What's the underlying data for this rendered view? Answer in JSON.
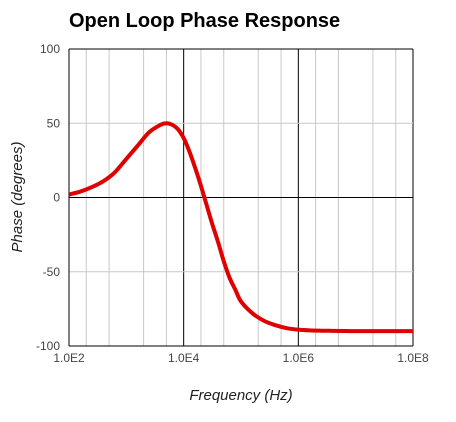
{
  "chart_data": {
    "type": "line",
    "title": "Open Loop Phase Response",
    "xlabel": "Frequency (Hz)",
    "ylabel": "Phase (degrees)",
    "x_scale": "log",
    "xlim": [
      100,
      100000000
    ],
    "ylim": [
      -100,
      100
    ],
    "x_ticks": [
      {
        "value": 100,
        "label": "1.0E2"
      },
      {
        "value": 10000,
        "label": "1.0E4"
      },
      {
        "value": 1000000,
        "label": "1.0E6"
      },
      {
        "value": 100000000,
        "label": "1.0E8"
      }
    ],
    "y_ticks": [
      {
        "value": 100,
        "label": "100"
      },
      {
        "value": 50,
        "label": "50"
      },
      {
        "value": 0,
        "label": "0"
      },
      {
        "value": -50,
        "label": "-50"
      },
      {
        "value": -100,
        "label": "-100"
      }
    ],
    "grid": true,
    "legend": "none",
    "series": [
      {
        "color": "#e00000",
        "x": [
          100,
          158,
          251,
          398,
          631,
          1000,
          1585,
          2512,
          3981,
          5012,
          6310,
          7943,
          10000,
          12589,
          15849,
          19953,
          25119,
          31623,
          39811,
          50119,
          63096,
          79433,
          100000,
          158489,
          251189,
          398107,
          630957,
          1000000,
          1584893,
          2511886,
          3981072,
          6309573,
          10000000,
          100000000
        ],
        "y": [
          2,
          4,
          7,
          11,
          17,
          26,
          35,
          44,
          49,
          50,
          49,
          46,
          40,
          31,
          20,
          8,
          -5,
          -18,
          -30,
          -43,
          -54,
          -62,
          -70,
          -78,
          -83,
          -86,
          -88,
          -89,
          -89.5,
          -89.7,
          -89.8,
          -89.9,
          -90,
          -90
        ]
      }
    ]
  }
}
